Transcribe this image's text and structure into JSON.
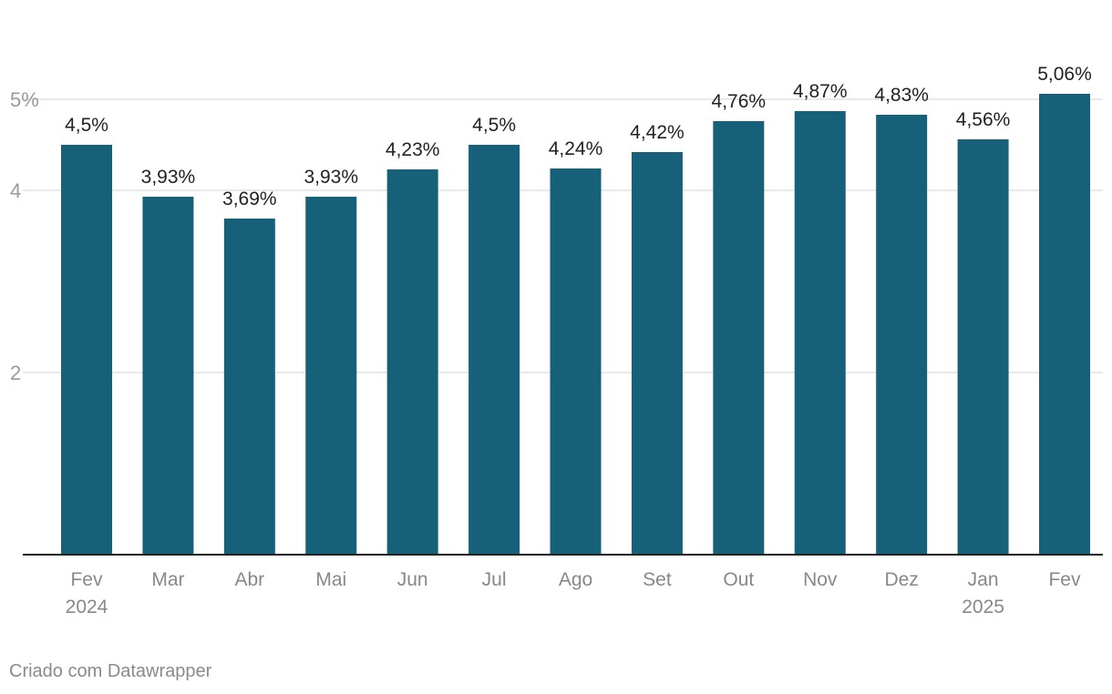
{
  "chart_data": {
    "type": "bar",
    "title": "",
    "xlabel": "",
    "ylabel": "",
    "ylim": [
      0,
      5
    ],
    "yticks": [
      2,
      4,
      5
    ],
    "ytick_labels": [
      "2",
      "4",
      "5%"
    ],
    "categories": [
      "Fev",
      "Mar",
      "Abr",
      "Mai",
      "Jun",
      "Jul",
      "Ago",
      "Set",
      "Out",
      "Nov",
      "Dez",
      "Jan",
      "Fev"
    ],
    "year_labels": [
      "2024",
      "",
      "",
      "",
      "",
      "",
      "",
      "",
      "",
      "",
      "",
      "2025",
      ""
    ],
    "values": [
      4.5,
      3.93,
      3.69,
      3.93,
      4.23,
      4.5,
      4.24,
      4.42,
      4.76,
      4.87,
      4.83,
      4.56,
      5.06
    ],
    "value_labels": [
      "4,5%",
      "3,93%",
      "3,69%",
      "3,93%",
      "4,23%",
      "4,5%",
      "4,24%",
      "4,42%",
      "4,76%",
      "4,87%",
      "4,83%",
      "4,56%",
      "5,06%"
    ],
    "bar_color": "#17607a",
    "grid": true
  },
  "footer": {
    "credit": "Criado com Datawrapper"
  }
}
